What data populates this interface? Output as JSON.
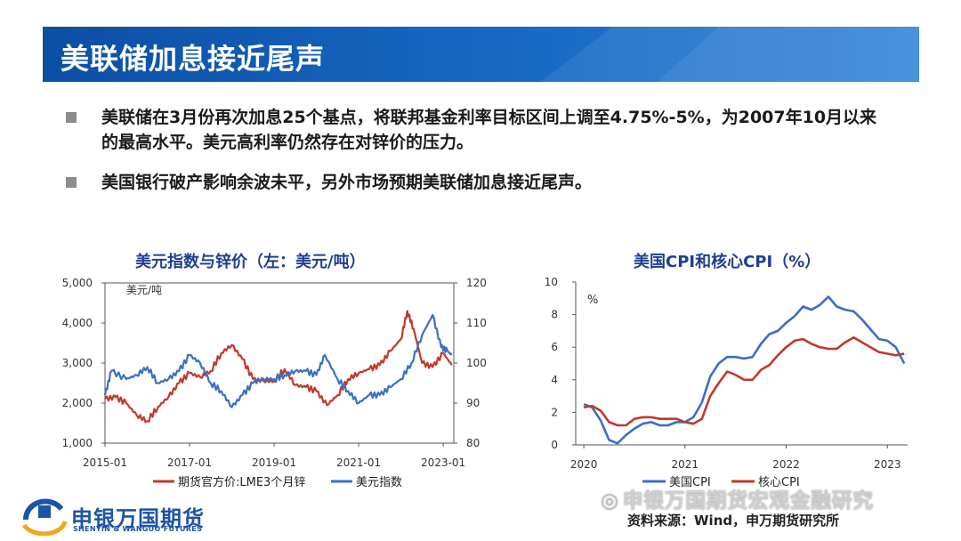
{
  "title": "美联储加息接近尾声",
  "bullets": [
    "美联储在3月份再次加息25个基点，将联邦基金利率目标区间上调至4.75%-5%，为2007年10月以来的最高水平。美元高利率仍然存在对锌价的压力。",
    "美国银行破产影响余波未平，另外市场预期美联储加息接近尾声。"
  ],
  "left_chart": {
    "title": "美元指数与锌价（左：美元/吨）",
    "unit_label": "美元/吨"
  },
  "right_chart": {
    "title": "美国CPI和核心CPI（%）",
    "unit_label": "%"
  },
  "chart_data": [
    {
      "type": "line",
      "title": "美元指数与锌价（左：美元/吨）",
      "x_ticks": [
        "2015-01",
        "2017-01",
        "2019-01",
        "2021-01",
        "2023-01"
      ],
      "y_left_ticks": [
        "1,000",
        "2,000",
        "3,000",
        "4,000",
        "5,000"
      ],
      "y_right_ticks": [
        "80",
        "90",
        "100",
        "110",
        "120"
      ],
      "ylim_left": [
        1000,
        5000
      ],
      "ylim_right": [
        80,
        120
      ],
      "xlim": [
        2015.0,
        2023.25
      ],
      "series": [
        {
          "name": "期货官方价:LME3个月锌",
          "axis": "left",
          "color": "#c0392b",
          "x": [
            2015.0,
            2015.25,
            2015.5,
            2015.75,
            2016.0,
            2016.25,
            2016.5,
            2016.75,
            2017.0,
            2017.25,
            2017.5,
            2017.75,
            2018.0,
            2018.25,
            2018.5,
            2018.75,
            2019.0,
            2019.25,
            2019.5,
            2019.75,
            2020.0,
            2020.25,
            2020.5,
            2020.75,
            2021.0,
            2021.25,
            2021.5,
            2021.75,
            2022.0,
            2022.15,
            2022.3,
            2022.5,
            2022.75,
            2023.0,
            2023.2
          ],
          "values": [
            2100,
            2150,
            2000,
            1700,
            1550,
            1900,
            2150,
            2500,
            2750,
            2650,
            2800,
            3250,
            3450,
            3100,
            2600,
            2550,
            2550,
            2850,
            2450,
            2400,
            2300,
            1950,
            2200,
            2600,
            2750,
            2850,
            2950,
            3300,
            3600,
            4300,
            3850,
            3000,
            2900,
            3250,
            2950
          ]
        },
        {
          "name": "美元指数",
          "axis": "right",
          "color": "#3a6fc4",
          "x": [
            2015.0,
            2015.15,
            2015.5,
            2015.75,
            2016.0,
            2016.25,
            2016.5,
            2016.75,
            2017.0,
            2017.25,
            2017.5,
            2017.75,
            2018.0,
            2018.25,
            2018.5,
            2018.75,
            2019.0,
            2019.25,
            2019.5,
            2019.75,
            2020.0,
            2020.2,
            2020.5,
            2020.75,
            2021.0,
            2021.25,
            2021.5,
            2021.75,
            2022.0,
            2022.25,
            2022.5,
            2022.75,
            2022.95,
            2023.1,
            2023.2
          ],
          "values": [
            92,
            98,
            96,
            97,
            99,
            95,
            96,
            98,
            102,
            100,
            95,
            93,
            89,
            92,
            95,
            96,
            96,
            97,
            98,
            98,
            97,
            102,
            96,
            93,
            90,
            92,
            92,
            94,
            96,
            100,
            107,
            112,
            104,
            103,
            102
          ]
        }
      ]
    },
    {
      "type": "line",
      "title": "美国CPI和核心CPI（%）",
      "x_ticks": [
        "2020",
        "2021",
        "2022",
        "2023"
      ],
      "y_ticks": [
        "0",
        "2",
        "4",
        "6",
        "8",
        "10"
      ],
      "ylim": [
        0,
        10
      ],
      "xlim": [
        2019.92,
        2023.2
      ],
      "series": [
        {
          "name": "美国CPI",
          "color": "#3a6fc4",
          "x": [
            2020.0,
            2020.083,
            2020.167,
            2020.25,
            2020.333,
            2020.417,
            2020.5,
            2020.583,
            2020.667,
            2020.75,
            2020.833,
            2020.917,
            2021.0,
            2021.083,
            2021.167,
            2021.25,
            2021.333,
            2021.417,
            2021.5,
            2021.583,
            2021.667,
            2021.75,
            2021.833,
            2021.917,
            2022.0,
            2022.083,
            2022.167,
            2022.25,
            2022.333,
            2022.417,
            2022.5,
            2022.583,
            2022.667,
            2022.75,
            2022.833,
            2022.917,
            2023.0,
            2023.083,
            2023.167
          ],
          "values": [
            2.5,
            2.3,
            1.5,
            0.3,
            0.1,
            0.6,
            1.0,
            1.3,
            1.4,
            1.2,
            1.2,
            1.4,
            1.4,
            1.7,
            2.6,
            4.2,
            5.0,
            5.4,
            5.4,
            5.3,
            5.4,
            6.2,
            6.8,
            7.0,
            7.5,
            7.9,
            8.5,
            8.3,
            8.6,
            9.1,
            8.5,
            8.3,
            8.2,
            7.7,
            7.1,
            6.5,
            6.4,
            6.0,
            5.0
          ]
        },
        {
          "name": "核心CPI",
          "color": "#c0392b",
          "x": [
            2020.0,
            2020.083,
            2020.167,
            2020.25,
            2020.333,
            2020.417,
            2020.5,
            2020.583,
            2020.667,
            2020.75,
            2020.833,
            2020.917,
            2021.0,
            2021.083,
            2021.167,
            2021.25,
            2021.333,
            2021.417,
            2021.5,
            2021.583,
            2021.667,
            2021.75,
            2021.833,
            2021.917,
            2022.0,
            2022.083,
            2022.167,
            2022.25,
            2022.333,
            2022.417,
            2022.5,
            2022.583,
            2022.667,
            2022.75,
            2022.833,
            2022.917,
            2023.0,
            2023.083,
            2023.167
          ],
          "values": [
            2.3,
            2.4,
            2.1,
            1.4,
            1.2,
            1.2,
            1.6,
            1.7,
            1.7,
            1.6,
            1.6,
            1.6,
            1.4,
            1.3,
            1.6,
            3.0,
            3.8,
            4.5,
            4.3,
            4.0,
            4.0,
            4.6,
            4.9,
            5.5,
            6.0,
            6.4,
            6.5,
            6.2,
            6.0,
            5.9,
            5.9,
            6.3,
            6.6,
            6.3,
            6.0,
            5.7,
            5.6,
            5.5,
            5.6
          ]
        }
      ]
    }
  ],
  "logo": {
    "name": "申银万国期货",
    "name_en": "SHENYIN & WANGUO FUTURES"
  },
  "source": "资料来源：Wind，申万期货研究所",
  "watermark": "申银万国期货宏观金融研究",
  "colors": {
    "banner": "#1565c0",
    "title_text": "#1f3f8f",
    "zinc_series": "#c0392b",
    "dollar_series": "#3a6fc4"
  }
}
